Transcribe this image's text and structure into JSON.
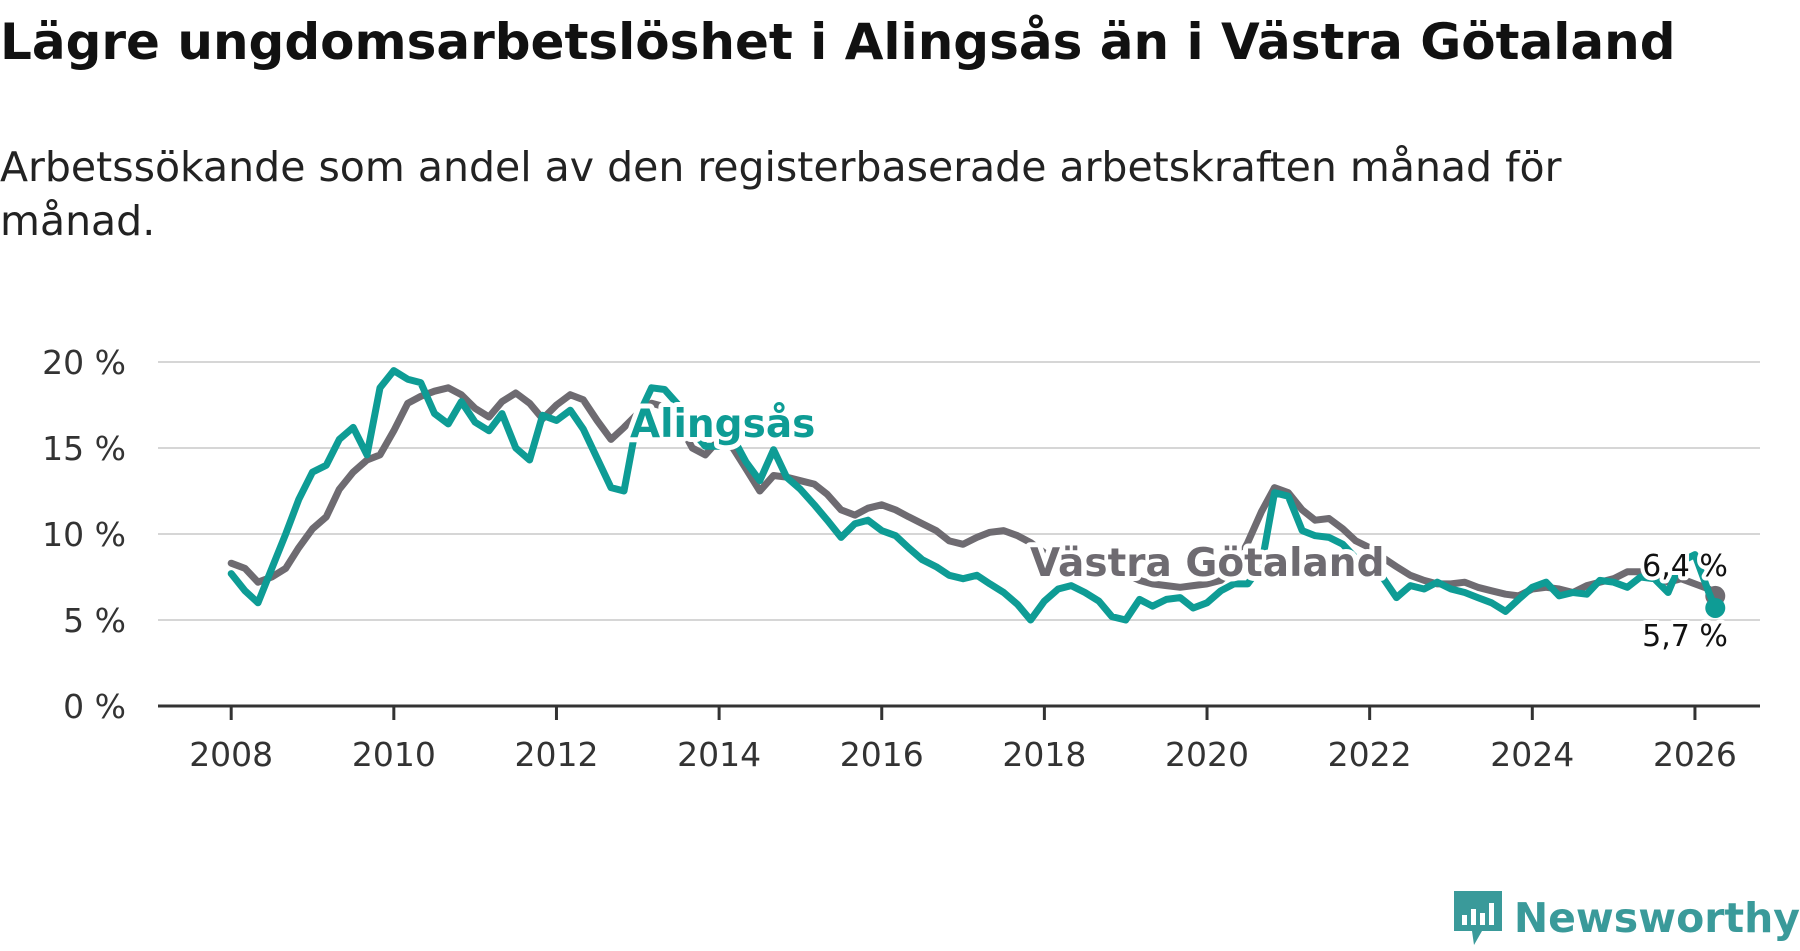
{
  "title": "Lägre ungdomsarbetslöshet i Alingsås än i Västra Götaland",
  "subtitle": "Arbetssökande som andel av den registerbaserade arbetskraften månad för månad.",
  "brand": {
    "name": "Newsworthy",
    "color": "#3a9a9a"
  },
  "chart_data": {
    "type": "line",
    "x_ticks": [
      "2008",
      "2010",
      "2012",
      "2014",
      "2016",
      "2018",
      "2020",
      "2022",
      "2024",
      "2026"
    ],
    "y_ticks": [
      "0 %",
      "5 %",
      "10 %",
      "15 %",
      "20 %"
    ],
    "ylim": [
      0,
      20
    ],
    "xlim": [
      2007.1,
      2026.8
    ],
    "grid": true,
    "series": [
      {
        "name": "Västra Götaland",
        "label": "Västra Götaland",
        "end_label": "6,4 %",
        "color": "#6e6b71",
        "points": [
          [
            2008.0,
            8.3
          ],
          [
            2008.17,
            8.0
          ],
          [
            2008.33,
            7.2
          ],
          [
            2008.5,
            7.5
          ],
          [
            2008.67,
            8.0
          ],
          [
            2008.83,
            9.2
          ],
          [
            2009.0,
            10.3
          ],
          [
            2009.17,
            11.0
          ],
          [
            2009.33,
            12.6
          ],
          [
            2009.5,
            13.6
          ],
          [
            2009.67,
            14.3
          ],
          [
            2009.83,
            14.6
          ],
          [
            2010.0,
            16.0
          ],
          [
            2010.17,
            17.6
          ],
          [
            2010.33,
            18.0
          ],
          [
            2010.5,
            18.3
          ],
          [
            2010.67,
            18.5
          ],
          [
            2010.83,
            18.1
          ],
          [
            2011.0,
            17.3
          ],
          [
            2011.17,
            16.8
          ],
          [
            2011.33,
            17.7
          ],
          [
            2011.5,
            18.2
          ],
          [
            2011.67,
            17.6
          ],
          [
            2011.83,
            16.7
          ],
          [
            2012.0,
            17.5
          ],
          [
            2012.17,
            18.1
          ],
          [
            2012.33,
            17.8
          ],
          [
            2012.5,
            16.6
          ],
          [
            2012.67,
            15.5
          ],
          [
            2012.83,
            16.2
          ],
          [
            2013.0,
            17.0
          ],
          [
            2013.17,
            17.6
          ],
          [
            2013.33,
            17.4
          ],
          [
            2013.5,
            16.5
          ],
          [
            2013.67,
            15.0
          ],
          [
            2013.83,
            14.6
          ],
          [
            2014.0,
            15.5
          ],
          [
            2014.17,
            15.0
          ],
          [
            2014.33,
            13.8
          ],
          [
            2014.5,
            12.5
          ],
          [
            2014.67,
            13.4
          ],
          [
            2014.83,
            13.3
          ],
          [
            2015.0,
            13.1
          ],
          [
            2015.17,
            12.9
          ],
          [
            2015.33,
            12.3
          ],
          [
            2015.5,
            11.4
          ],
          [
            2015.67,
            11.1
          ],
          [
            2015.83,
            11.5
          ],
          [
            2016.0,
            11.7
          ],
          [
            2016.17,
            11.4
          ],
          [
            2016.33,
            11.0
          ],
          [
            2016.5,
            10.6
          ],
          [
            2016.67,
            10.2
          ],
          [
            2016.83,
            9.6
          ],
          [
            2017.0,
            9.4
          ],
          [
            2017.17,
            9.8
          ],
          [
            2017.33,
            10.1
          ],
          [
            2017.5,
            10.2
          ],
          [
            2017.67,
            9.9
          ],
          [
            2017.83,
            9.5
          ],
          [
            2018.0,
            8.9
          ],
          [
            2018.17,
            8.3
          ],
          [
            2018.33,
            8.0
          ],
          [
            2018.5,
            8.4
          ],
          [
            2018.67,
            8.5
          ],
          [
            2018.83,
            8.1
          ],
          [
            2019.0,
            7.7
          ],
          [
            2019.17,
            7.3
          ],
          [
            2019.33,
            7.1
          ],
          [
            2019.5,
            7.0
          ],
          [
            2019.67,
            6.9
          ],
          [
            2019.83,
            7.0
          ],
          [
            2020.0,
            7.1
          ],
          [
            2020.17,
            7.3
          ],
          [
            2020.33,
            8.0
          ],
          [
            2020.5,
            9.5
          ],
          [
            2020.67,
            11.3
          ],
          [
            2020.83,
            12.7
          ],
          [
            2021.0,
            12.4
          ],
          [
            2021.17,
            11.4
          ],
          [
            2021.33,
            10.8
          ],
          [
            2021.5,
            10.9
          ],
          [
            2021.67,
            10.3
          ],
          [
            2021.83,
            9.6
          ],
          [
            2022.0,
            9.2
          ],
          [
            2022.17,
            8.6
          ],
          [
            2022.33,
            8.1
          ],
          [
            2022.5,
            7.6
          ],
          [
            2022.67,
            7.3
          ],
          [
            2022.83,
            7.1
          ],
          [
            2023.0,
            7.1
          ],
          [
            2023.17,
            7.2
          ],
          [
            2023.33,
            6.9
          ],
          [
            2023.5,
            6.7
          ],
          [
            2023.67,
            6.5
          ],
          [
            2023.83,
            6.4
          ],
          [
            2024.0,
            6.8
          ],
          [
            2024.17,
            6.9
          ],
          [
            2024.33,
            6.8
          ],
          [
            2024.5,
            6.6
          ],
          [
            2024.67,
            7.0
          ],
          [
            2024.83,
            7.2
          ],
          [
            2025.0,
            7.4
          ],
          [
            2025.17,
            7.8
          ],
          [
            2025.33,
            7.8
          ],
          [
            2025.5,
            7.6
          ],
          [
            2025.67,
            7.2
          ],
          [
            2025.83,
            7.4
          ],
          [
            2026.0,
            7.1
          ],
          [
            2026.17,
            6.8
          ],
          [
            2026.25,
            6.4
          ]
        ]
      },
      {
        "name": "Alingsås",
        "label": "Alingsås",
        "end_label": "5,7 %",
        "color": "#0e9c95",
        "points": [
          [
            2008.0,
            7.7
          ],
          [
            2008.17,
            6.7
          ],
          [
            2008.33,
            6.0
          ],
          [
            2008.5,
            8.0
          ],
          [
            2008.67,
            10.0
          ],
          [
            2008.83,
            12.0
          ],
          [
            2009.0,
            13.6
          ],
          [
            2009.17,
            14.0
          ],
          [
            2009.33,
            15.5
          ],
          [
            2009.5,
            16.2
          ],
          [
            2009.67,
            14.6
          ],
          [
            2009.83,
            18.5
          ],
          [
            2010.0,
            19.5
          ],
          [
            2010.17,
            19.0
          ],
          [
            2010.33,
            18.8
          ],
          [
            2010.5,
            17.0
          ],
          [
            2010.67,
            16.4
          ],
          [
            2010.83,
            17.7
          ],
          [
            2011.0,
            16.5
          ],
          [
            2011.17,
            16.0
          ],
          [
            2011.33,
            17.0
          ],
          [
            2011.5,
            15.0
          ],
          [
            2011.67,
            14.3
          ],
          [
            2011.83,
            16.9
          ],
          [
            2012.0,
            16.6
          ],
          [
            2012.17,
            17.2
          ],
          [
            2012.33,
            16.1
          ],
          [
            2012.5,
            14.4
          ],
          [
            2012.67,
            12.7
          ],
          [
            2012.83,
            12.5
          ],
          [
            2013.0,
            16.8
          ],
          [
            2013.17,
            18.5
          ],
          [
            2013.33,
            18.4
          ],
          [
            2013.5,
            17.5
          ],
          [
            2013.67,
            16.0
          ],
          [
            2013.83,
            15.1
          ],
          [
            2014.0,
            15.1
          ],
          [
            2014.17,
            15.6
          ],
          [
            2014.33,
            14.2
          ],
          [
            2014.5,
            13.1
          ],
          [
            2014.67,
            14.9
          ],
          [
            2014.83,
            13.3
          ],
          [
            2015.0,
            12.6
          ],
          [
            2015.17,
            11.7
          ],
          [
            2015.33,
            10.8
          ],
          [
            2015.5,
            9.8
          ],
          [
            2015.67,
            10.6
          ],
          [
            2015.83,
            10.8
          ],
          [
            2016.0,
            10.2
          ],
          [
            2016.17,
            9.9
          ],
          [
            2016.33,
            9.2
          ],
          [
            2016.5,
            8.5
          ],
          [
            2016.67,
            8.1
          ],
          [
            2016.83,
            7.6
          ],
          [
            2017.0,
            7.4
          ],
          [
            2017.17,
            7.6
          ],
          [
            2017.33,
            7.1
          ],
          [
            2017.5,
            6.6
          ],
          [
            2017.67,
            5.9
          ],
          [
            2017.83,
            5.0
          ],
          [
            2018.0,
            6.1
          ],
          [
            2018.17,
            6.8
          ],
          [
            2018.33,
            7.0
          ],
          [
            2018.5,
            6.6
          ],
          [
            2018.67,
            6.1
          ],
          [
            2018.83,
            5.2
          ],
          [
            2019.0,
            5.0
          ],
          [
            2019.17,
            6.2
          ],
          [
            2019.33,
            5.8
          ],
          [
            2019.5,
            6.2
          ],
          [
            2019.67,
            6.3
          ],
          [
            2019.83,
            5.7
          ],
          [
            2020.0,
            6.0
          ],
          [
            2020.17,
            6.7
          ],
          [
            2020.33,
            7.1
          ],
          [
            2020.5,
            7.1
          ],
          [
            2020.67,
            8.2
          ],
          [
            2020.83,
            12.4
          ],
          [
            2021.0,
            12.2
          ],
          [
            2021.17,
            10.2
          ],
          [
            2021.33,
            9.9
          ],
          [
            2021.5,
            9.8
          ],
          [
            2021.67,
            9.4
          ],
          [
            2021.83,
            8.6
          ],
          [
            2022.0,
            7.9
          ],
          [
            2022.17,
            7.4
          ],
          [
            2022.33,
            6.3
          ],
          [
            2022.5,
            7.0
          ],
          [
            2022.67,
            6.8
          ],
          [
            2022.83,
            7.2
          ],
          [
            2023.0,
            6.8
          ],
          [
            2023.17,
            6.6
          ],
          [
            2023.33,
            6.3
          ],
          [
            2023.5,
            6.0
          ],
          [
            2023.67,
            5.5
          ],
          [
            2023.83,
            6.2
          ],
          [
            2024.0,
            6.9
          ],
          [
            2024.17,
            7.2
          ],
          [
            2024.33,
            6.4
          ],
          [
            2024.5,
            6.6
          ],
          [
            2024.67,
            6.5
          ],
          [
            2024.83,
            7.3
          ],
          [
            2025.0,
            7.2
          ],
          [
            2025.17,
            6.9
          ],
          [
            2025.33,
            7.5
          ],
          [
            2025.5,
            7.4
          ],
          [
            2025.67,
            6.6
          ],
          [
            2025.83,
            8.4
          ],
          [
            2026.0,
            8.8
          ],
          [
            2026.17,
            6.6
          ],
          [
            2026.25,
            5.7
          ]
        ]
      }
    ]
  }
}
